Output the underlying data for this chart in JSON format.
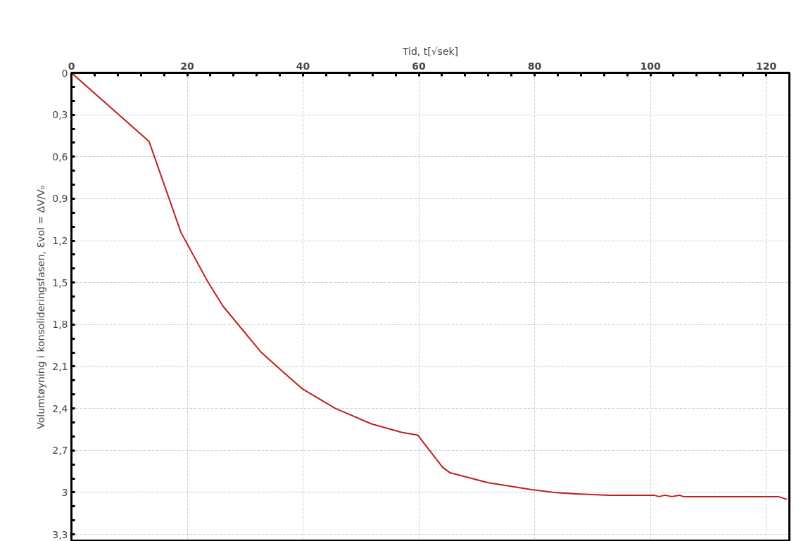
{
  "chart_data": {
    "type": "line",
    "xlabel": "Tid, t[√sek]",
    "ylabel": "Volumtøyning i konsolideringsfasen, Ɛvol = ΔV/Vₒ",
    "x": [
      0,
      13.4,
      18.9,
      23.5,
      26.2,
      32.8,
      37.7,
      39.9,
      45.6,
      51.8,
      57.0,
      59.8,
      64.1,
      65.4,
      71.9,
      79.5,
      83.3,
      87.1,
      92.9,
      100.6,
      101.5,
      102.5,
      103.7,
      105.0,
      105.7,
      122.1,
      123.6
    ],
    "series": [
      {
        "color": "#c0201c",
        "values": [
          0,
          0.49,
          1.14,
          1.49,
          1.67,
          2.0,
          2.18,
          2.26,
          2.4,
          2.51,
          2.57,
          2.59,
          2.82,
          2.86,
          2.93,
          2.98,
          3.0,
          3.01,
          3.02,
          3.02,
          3.03,
          3.02,
          3.03,
          3.02,
          3.03,
          3.03,
          3.05
        ]
      }
    ],
    "xlim": [
      0,
      124
    ],
    "ylim": [
      3.35,
      0
    ],
    "xticks": [
      0,
      {
        "value": 4,
        "label": null
      },
      {
        "value": 8,
        "label": null
      },
      {
        "value": 12,
        "label": null
      },
      {
        "value": 16,
        "label": null
      },
      20,
      {
        "value": 24,
        "label": null
      },
      {
        "value": 28,
        "label": null
      },
      {
        "value": 32,
        "label": null
      },
      {
        "value": 36,
        "label": null
      },
      40,
      {
        "value": 44,
        "label": null
      },
      {
        "value": 48,
        "label": null
      },
      {
        "value": 52,
        "label": null
      },
      {
        "value": 56,
        "label": null
      },
      60,
      {
        "value": 64,
        "label": null
      },
      {
        "value": 68,
        "label": null
      },
      {
        "value": 72,
        "label": null
      },
      {
        "value": 76,
        "label": null
      },
      80,
      {
        "value": 84,
        "label": null
      },
      {
        "value": 88,
        "label": null
      },
      {
        "value": 92,
        "label": null
      },
      {
        "value": 96,
        "label": null
      },
      100,
      {
        "value": 104,
        "label": null
      },
      {
        "value": 108,
        "label": null
      },
      {
        "value": 112,
        "label": null
      },
      {
        "value": 116,
        "label": null
      },
      120,
      {
        "value": 124,
        "label": null
      }
    ],
    "yticks": [
      0,
      {
        "value": 0.1,
        "label": null
      },
      {
        "value": 0.2,
        "label": null
      },
      {
        "value": 0.3,
        "label": "0,3"
      },
      {
        "value": 0.4,
        "label": null
      },
      {
        "value": 0.5,
        "label": null
      },
      {
        "value": 0.6,
        "label": "0,6"
      },
      {
        "value": 0.7,
        "label": null
      },
      {
        "value": 0.8,
        "label": null
      },
      {
        "value": 0.9,
        "label": "0,9"
      },
      {
        "value": 1.0,
        "label": null
      },
      {
        "value": 1.1,
        "label": null
      },
      {
        "value": 1.2,
        "label": "1,2"
      },
      {
        "value": 1.3,
        "label": null
      },
      {
        "value": 1.4,
        "label": null
      },
      {
        "value": 1.5,
        "label": "1,5"
      },
      {
        "value": 1.6,
        "label": null
      },
      {
        "value": 1.7,
        "label": null
      },
      {
        "value": 1.8,
        "label": "1,8"
      },
      {
        "value": 1.9,
        "label": null
      },
      {
        "value": 2.0,
        "label": null
      },
      {
        "value": 2.1,
        "label": "2,1"
      },
      {
        "value": 2.2,
        "label": null
      },
      {
        "value": 2.3,
        "label": null
      },
      {
        "value": 2.4,
        "label": "2,4"
      },
      {
        "value": 2.5,
        "label": null
      },
      {
        "value": 2.6,
        "label": null
      },
      {
        "value": 2.7,
        "label": "2,7"
      },
      {
        "value": 2.8,
        "label": null
      },
      {
        "value": 2.9,
        "label": null
      },
      3,
      {
        "value": 3.1,
        "label": null
      },
      {
        "value": 3.2,
        "label": null
      },
      {
        "value": 3.3,
        "label": "3,3"
      }
    ],
    "grid": true,
    "line_style": "solid"
  }
}
